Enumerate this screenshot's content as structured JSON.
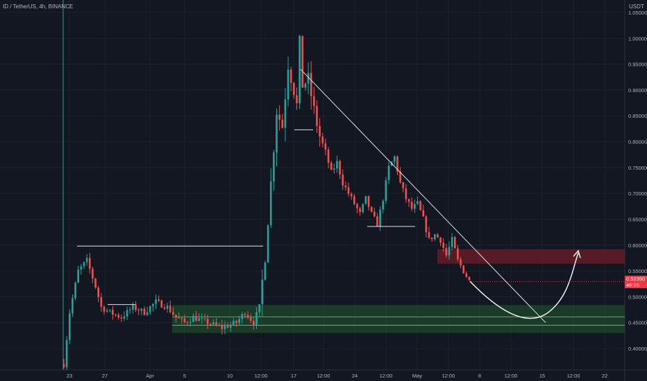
{
  "header": {
    "symbol_line": "ID / TetherUS, 4h, BINANCE",
    "unit": "USDT"
  },
  "last_price": {
    "value": "0.52950",
    "countdown": "46:26"
  },
  "colors": {
    "background": "#131722",
    "up": "#26a69a",
    "down": "#ef5350",
    "axis_text": "#b2b5be",
    "grid": "#1e222d",
    "annotation": "#e0e3eb",
    "support_zone": "#1f5a2c",
    "resistance_zone": "#6e1d27",
    "badge": "#f23645"
  },
  "chart_data": {
    "type": "candlestick",
    "title": "ID / TetherUS, 4h, BINANCE",
    "ylabel": "USDT",
    "ylim": [
      0.37,
      1.06
    ],
    "y_ticks": [
      "1.05000",
      "1.00000",
      "0.95000",
      "0.90000",
      "0.85000",
      "0.80000",
      "0.75000",
      "0.70000",
      "0.65000",
      "0.60000",
      "0.55000",
      "0.50000",
      "0.45000",
      "0.40000"
    ],
    "x_ticks": [
      "23",
      "27",
      "Apr",
      "5",
      "10",
      "12:00",
      "17",
      "12:00",
      "24",
      "12:00",
      "May",
      "12:00",
      "8",
      "12:00",
      "15",
      "12:00",
      "22"
    ],
    "path_anchors": [
      [
        0,
        0.37
      ],
      [
        2,
        0.47
      ],
      [
        5,
        0.55
      ],
      [
        8,
        0.57
      ],
      [
        11,
        0.52
      ],
      [
        13,
        0.48
      ],
      [
        16,
        0.47
      ],
      [
        20,
        0.46
      ],
      [
        24,
        0.48
      ],
      [
        28,
        0.47
      ],
      [
        32,
        0.49
      ],
      [
        36,
        0.48
      ],
      [
        39,
        0.46
      ],
      [
        42,
        0.45
      ],
      [
        45,
        0.46
      ],
      [
        50,
        0.45
      ],
      [
        55,
        0.44
      ],
      [
        60,
        0.45
      ],
      [
        63,
        0.47
      ],
      [
        66,
        0.45
      ],
      [
        68,
        0.48
      ],
      [
        70,
        0.58
      ],
      [
        72,
        0.72
      ],
      [
        74,
        0.86
      ],
      [
        76,
        0.83
      ],
      [
        78,
        0.95
      ],
      [
        80,
        0.9
      ],
      [
        81,
        0.87
      ],
      [
        82,
        0.99
      ],
      [
        83,
        0.91
      ],
      [
        85,
        0.92
      ],
      [
        87,
        0.86
      ],
      [
        89,
        0.81
      ],
      [
        91,
        0.78
      ],
      [
        93,
        0.74
      ],
      [
        95,
        0.76
      ],
      [
        97,
        0.72
      ],
      [
        99,
        0.7
      ],
      [
        101,
        0.68
      ],
      [
        103,
        0.66
      ],
      [
        105,
        0.69
      ],
      [
        107,
        0.66
      ],
      [
        109,
        0.64
      ],
      [
        111,
        0.69
      ],
      [
        113,
        0.75
      ],
      [
        115,
        0.77
      ],
      [
        117,
        0.72
      ],
      [
        119,
        0.69
      ],
      [
        121,
        0.67
      ],
      [
        123,
        0.68
      ],
      [
        125,
        0.65
      ],
      [
        127,
        0.61
      ],
      [
        129,
        0.62
      ],
      [
        131,
        0.61
      ],
      [
        133,
        0.58
      ],
      [
        135,
        0.61
      ],
      [
        137,
        0.57
      ],
      [
        139,
        0.55
      ],
      [
        141,
        0.53
      ]
    ],
    "resistance_zone": [
      0.564,
      0.592
    ],
    "support_zone": [
      0.43,
      0.484
    ],
    "support_lines": [
      0.445,
      0.461
    ],
    "trendline": {
      "from": [
        0.94,
        "Apr 17 12:00"
      ],
      "to": [
        0.45,
        "May 15"
      ]
    },
    "horizontal_levels": [
      0.598,
      0.485,
      0.823,
      0.636
    ],
    "projection": "rounded dip to ~0.46 then rise toward ~0.58"
  }
}
